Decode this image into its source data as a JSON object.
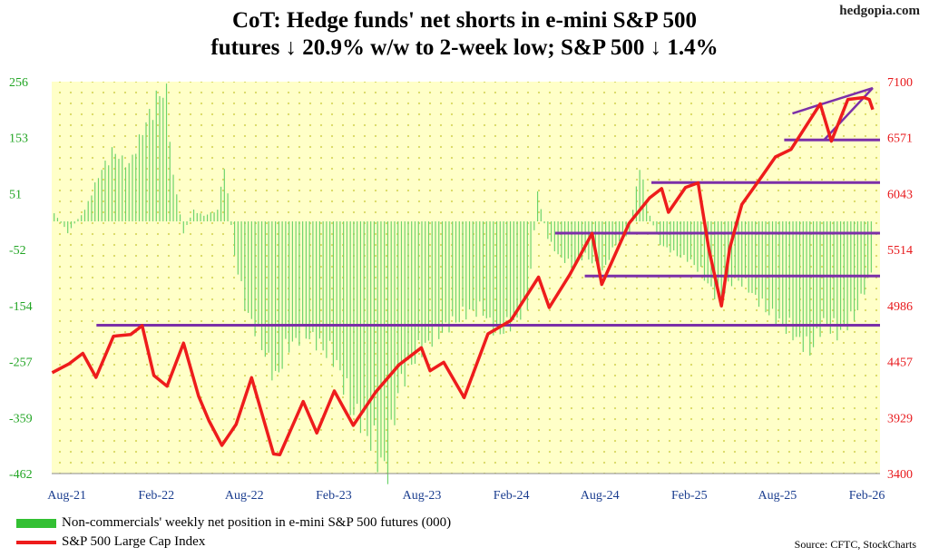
{
  "watermark": "hedgopia.com",
  "chart_data": {
    "type": "bar+line",
    "title_line1": "CoT: Hedge funds' net shorts in e-mini S&P 500",
    "title_line2": "futures ↓ 20.9% w/w to 2-week low; S&P 500 ↓ 1.4%",
    "xlim": [
      "2021-07-01",
      "2026-02-28"
    ],
    "x_ticks": [
      {
        "date": "2021-08-01",
        "label": "Aug-21"
      },
      {
        "date": "2022-02-01",
        "label": "Feb-22"
      },
      {
        "date": "2022-08-01",
        "label": "Aug-22"
      },
      {
        "date": "2023-02-01",
        "label": "Feb-23"
      },
      {
        "date": "2023-08-01",
        "label": "Aug-23"
      },
      {
        "date": "2024-02-01",
        "label": "Feb-24"
      },
      {
        "date": "2024-08-01",
        "label": "Aug-24"
      },
      {
        "date": "2025-02-01",
        "label": "Feb-25"
      },
      {
        "date": "2025-08-01",
        "label": "Aug-25"
      },
      {
        "date": "2026-02-01",
        "label": "Feb-26"
      }
    ],
    "y_left": {
      "min": -462,
      "max": 256,
      "ticks": [
        "256",
        "153",
        "51",
        "-52",
        "-154",
        "-257",
        "-359",
        "-462"
      ],
      "color": "#22a524"
    },
    "y_right": {
      "min": 3400,
      "max": 7100,
      "ticks": [
        "7100",
        "6571",
        "6043",
        "5514",
        "4986",
        "4457",
        "3929",
        "3400"
      ],
      "color": "#e8191c"
    },
    "colors": {
      "bars": "#6dd46d",
      "line": "#ee1c1c",
      "levels": "#7b2fa8",
      "plot_bg": "#ffffc8",
      "dots": "#d8d860",
      "axis_labels": "#1a3d8f"
    },
    "series": [
      {
        "name": "Non-commercials' weekly net position in e-mini S&P 500 futures (000)",
        "type": "bar",
        "points": [
          [
            "2021-07-06",
            15
          ],
          [
            "2021-08-03",
            -20
          ],
          [
            "2021-09-07",
            20
          ],
          [
            "2021-10-05",
            80
          ],
          [
            "2021-11-02",
            125
          ],
          [
            "2021-12-07",
            100
          ],
          [
            "2022-01-04",
            160
          ],
          [
            "2022-02-01",
            220
          ],
          [
            "2022-02-22",
            230
          ],
          [
            "2022-03-08",
            80
          ],
          [
            "2022-03-29",
            -20
          ],
          [
            "2022-04-19",
            20
          ],
          [
            "2022-05-10",
            10
          ],
          [
            "2022-06-07",
            20
          ],
          [
            "2022-06-21",
            100
          ],
          [
            "2022-07-12",
            -60
          ],
          [
            "2022-08-02",
            -150
          ],
          [
            "2022-09-06",
            -220
          ],
          [
            "2022-10-04",
            -280
          ],
          [
            "2022-11-01",
            -220
          ],
          [
            "2022-12-06",
            -200
          ],
          [
            "2023-01-03",
            -220
          ],
          [
            "2023-02-07",
            -250
          ],
          [
            "2023-03-07",
            -330
          ],
          [
            "2023-04-04",
            -360
          ],
          [
            "2023-05-02",
            -420
          ],
          [
            "2023-05-23",
            -440
          ],
          [
            "2023-06-13",
            -300
          ],
          [
            "2023-07-11",
            -250
          ],
          [
            "2023-08-08",
            -220
          ],
          [
            "2023-09-05",
            -200
          ],
          [
            "2023-10-03",
            -180
          ],
          [
            "2023-11-07",
            -160
          ],
          [
            "2023-12-05",
            -160
          ],
          [
            "2024-01-02",
            -200
          ],
          [
            "2024-02-06",
            -180
          ],
          [
            "2024-03-05",
            -150
          ],
          [
            "2024-03-26",
            50
          ],
          [
            "2024-04-16",
            -30
          ],
          [
            "2024-05-07",
            -60
          ],
          [
            "2024-06-04",
            -80
          ],
          [
            "2024-07-02",
            -60
          ],
          [
            "2024-08-06",
            -90
          ],
          [
            "2024-09-03",
            -40
          ],
          [
            "2024-10-01",
            -20
          ],
          [
            "2024-10-22",
            100
          ],
          [
            "2024-11-12",
            10
          ],
          [
            "2024-12-03",
            -40
          ],
          [
            "2025-01-07",
            -60
          ],
          [
            "2025-02-04",
            -70
          ],
          [
            "2025-03-04",
            -100
          ],
          [
            "2025-04-01",
            -140
          ],
          [
            "2025-05-06",
            -100
          ],
          [
            "2025-06-03",
            -120
          ],
          [
            "2025-07-01",
            -150
          ],
          [
            "2025-08-05",
            -180
          ],
          [
            "2025-09-02",
            -200
          ],
          [
            "2025-10-07",
            -230
          ],
          [
            "2025-11-04",
            -180
          ],
          [
            "2025-12-02",
            -200
          ],
          [
            "2026-01-06",
            -170
          ],
          [
            "2026-02-10",
            -90
          ]
        ]
      },
      {
        "name": "S&P 500 Large Cap Index",
        "type": "line",
        "points": [
          [
            "2021-07-02",
            4352
          ],
          [
            "2021-08-06",
            4437
          ],
          [
            "2021-09-03",
            4535
          ],
          [
            "2021-09-30",
            4308
          ],
          [
            "2021-11-05",
            4697
          ],
          [
            "2021-12-10",
            4712
          ],
          [
            "2022-01-03",
            4796
          ],
          [
            "2022-01-27",
            4326
          ],
          [
            "2022-02-23",
            4225
          ],
          [
            "2022-03-29",
            4632
          ],
          [
            "2022-04-29",
            4131
          ],
          [
            "2022-05-20",
            3901
          ],
          [
            "2022-06-16",
            3666
          ],
          [
            "2022-07-15",
            3863
          ],
          [
            "2022-08-16",
            4305
          ],
          [
            "2022-09-30",
            3585
          ],
          [
            "2022-10-13",
            3577
          ],
          [
            "2022-11-30",
            4080
          ],
          [
            "2022-12-28",
            3783
          ],
          [
            "2023-02-02",
            4179
          ],
          [
            "2023-03-13",
            3855
          ],
          [
            "2023-04-28",
            4169
          ],
          [
            "2023-06-15",
            4426
          ],
          [
            "2023-07-31",
            4588
          ],
          [
            "2023-08-18",
            4370
          ],
          [
            "2023-09-15",
            4450
          ],
          [
            "2023-10-27",
            4117
          ],
          [
            "2023-12-15",
            4719
          ],
          [
            "2024-01-31",
            4846
          ],
          [
            "2024-03-28",
            5254
          ],
          [
            "2024-04-19",
            4967
          ],
          [
            "2024-05-31",
            5277
          ],
          [
            "2024-07-16",
            5667
          ],
          [
            "2024-08-05",
            5186
          ],
          [
            "2024-09-30",
            5762
          ],
          [
            "2024-11-11",
            6001
          ],
          [
            "2024-12-06",
            6090
          ],
          [
            "2024-12-20",
            5867
          ],
          [
            "2025-01-24",
            6101
          ],
          [
            "2025-02-19",
            6144
          ],
          [
            "2025-03-13",
            5521
          ],
          [
            "2025-04-08",
            4982
          ],
          [
            "2025-04-25",
            5525
          ],
          [
            "2025-05-20",
            5940
          ],
          [
            "2025-06-30",
            6205
          ],
          [
            "2025-07-28",
            6389
          ],
          [
            "2025-08-29",
            6460
          ],
          [
            "2025-09-30",
            6688
          ],
          [
            "2025-10-28",
            6890
          ],
          [
            "2025-11-20",
            6538
          ],
          [
            "2025-12-24",
            6932
          ],
          [
            "2026-01-26",
            6950
          ],
          [
            "2026-02-06",
            6932
          ],
          [
            "2026-02-13",
            6836
          ]
        ]
      }
    ],
    "levels": [
      {
        "axis": "right",
        "value": 4800,
        "from": "2021-10-01",
        "to": "2026-02-28"
      },
      {
        "axis": "right",
        "value": 5265,
        "from": "2024-07-01",
        "to": "2026-02-28"
      },
      {
        "axis": "right",
        "value": 5670,
        "from": "2024-05-01",
        "to": "2026-02-28"
      },
      {
        "axis": "right",
        "value": 6147,
        "from": "2024-11-15",
        "to": "2026-02-28"
      },
      {
        "axis": "right",
        "value": 6550,
        "from": "2025-08-15",
        "to": "2026-02-28"
      }
    ],
    "wedge": [
      {
        "from": [
          "2025-09-01",
          6800
        ],
        "to": [
          "2026-02-28",
          7040
        ]
      },
      {
        "from": [
          "2025-11-05",
          6550
        ],
        "to": [
          "2026-02-28",
          7040
        ]
      }
    ]
  },
  "legend": [
    {
      "label": "Non-commercials' weekly net position in e-mini S&P 500 futures (000)",
      "color": "#33c033",
      "kind": "bar"
    },
    {
      "label": "S&P 500 Large Cap Index",
      "color": "#ee1c1c",
      "kind": "line"
    }
  ],
  "source": "Source: CFTC, StockCharts"
}
